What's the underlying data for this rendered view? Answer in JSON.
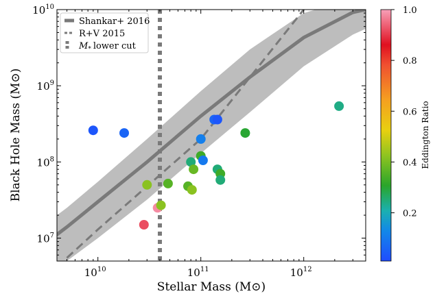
{
  "chart_data": {
    "type": "scatter",
    "title": "",
    "xlabel": "Stellar Mass (M⊙)",
    "ylabel": "Black Hole Mass (M⊙)",
    "xscale": "log",
    "yscale": "log",
    "xlim": [
      4000000000,
      4000000000000
    ],
    "ylim": [
      5000000,
      10000000000
    ],
    "xticks": [
      {
        "value": 10000000000,
        "base": "10",
        "exp": "10"
      },
      {
        "value": 100000000000,
        "base": "10",
        "exp": "11"
      },
      {
        "value": 1000000000000,
        "base": "10",
        "exp": "12"
      }
    ],
    "yticks": [
      {
        "value": 10000000,
        "base": "10",
        "exp": "7"
      },
      {
        "value": 100000000,
        "base": "10",
        "exp": "8"
      },
      {
        "value": 1000000000,
        "base": "10",
        "exp": "9"
      },
      {
        "value": 10000000000,
        "base": "10",
        "exp": "10"
      }
    ],
    "grid": false,
    "legend": {
      "position": "top-left",
      "entries": [
        {
          "label": "Shankar+ 2016",
          "style": "solid-thick"
        },
        {
          "label": "R+V 2015",
          "style": "dashed"
        },
        {
          "label": "lower cut",
          "prefix": "M",
          "sub": "*",
          "style": "dotted-thick"
        }
      ]
    },
    "colorbar": {
      "label": "Eddington Ratio",
      "range": [
        0.01,
        1.0
      ],
      "ticks": [
        "0.2",
        "0.4",
        "0.6",
        "0.8",
        "1.0"
      ],
      "tick_values": [
        0.2,
        0.4,
        0.6,
        0.8,
        1.0
      ],
      "colormap": "jet-like (blue → green → yellow → red → pink)"
    },
    "lines": {
      "shankar_2016": {
        "x": [
          1800000000,
          3000000000,
          5000000000,
          10000000000,
          30000000000,
          100000000000,
          300000000000,
          1000000000000,
          3000000000000,
          4000000000000
        ],
        "y": [
          5000000,
          8300000,
          14000000,
          30000000,
          100000000,
          400000000,
          1300000000,
          4300000000,
          9200000000,
          10000000000
        ],
        "band_lo": [
          2000000,
          3100000,
          5000000,
          10000000,
          32000000,
          130000000,
          450000000,
          1800000000,
          4700000000,
          5600000000
        ],
        "band_hi": [
          9000000,
          15000000,
          25000000,
          55000000,
          200000000,
          850000000,
          3000000000,
          9000000000,
          14000000000,
          15000000000
        ]
      },
      "rv_2015": {
        "x": [
          5000000000,
          10000000000,
          100000000000,
          1000000000000
        ],
        "y": [
          5500000,
          13000000,
          200000000,
          10000000000
        ]
      },
      "mstar_lower_cut": {
        "x": 40000000000
      }
    },
    "points": [
      {
        "x": 9000000000,
        "y": 260000000,
        "edd": 0.03
      },
      {
        "x": 18000000000,
        "y": 240000000,
        "edd": 0.06
      },
      {
        "x": 28000000000,
        "y": 15000000,
        "edd": 0.92
      },
      {
        "x": 38000000000,
        "y": 25000000,
        "edd": 0.98
      },
      {
        "x": 41000000000,
        "y": 27000000,
        "edd": 0.42
      },
      {
        "x": 30000000000,
        "y": 50000000,
        "edd": 0.42
      },
      {
        "x": 48000000000,
        "y": 52000000,
        "edd": 0.36
      },
      {
        "x": 75000000000,
        "y": 48000000,
        "edd": 0.36
      },
      {
        "x": 82000000000,
        "y": 43000000,
        "edd": 0.42
      },
      {
        "x": 80000000000,
        "y": 100000000,
        "edd": 0.25
      },
      {
        "x": 85000000000,
        "y": 80000000,
        "edd": 0.38
      },
      {
        "x": 100000000000,
        "y": 120000000,
        "edd": 0.33
      },
      {
        "x": 105000000000,
        "y": 105000000,
        "edd": 0.1
      },
      {
        "x": 100000000000,
        "y": 200000000,
        "edd": 0.11
      },
      {
        "x": 135000000000,
        "y": 360000000,
        "edd": 0.06
      },
      {
        "x": 145000000000,
        "y": 360000000,
        "edd": 0.03
      },
      {
        "x": 145000000000,
        "y": 80000000,
        "edd": 0.25
      },
      {
        "x": 155000000000,
        "y": 70000000,
        "edd": 0.33
      },
      {
        "x": 155000000000,
        "y": 58000000,
        "edd": 0.25
      },
      {
        "x": 270000000000,
        "y": 240000000,
        "edd": 0.3
      },
      {
        "x": 2200000000000,
        "y": 540000000,
        "edd": 0.24
      }
    ]
  }
}
